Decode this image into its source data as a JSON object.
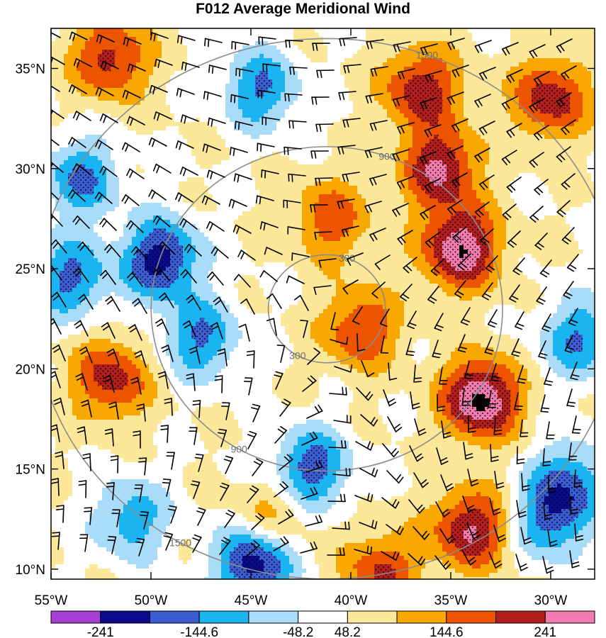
{
  "chart_data": {
    "type": "heatmap",
    "title": "F012 Average Meridional Wind",
    "x_ticks": [
      "55°W",
      "50°W",
      "45°W",
      "40°W",
      "35°W",
      "30°W"
    ],
    "x_tick_values": [
      -55,
      -50,
      -45,
      -40,
      -35,
      -30
    ],
    "y_ticks": [
      "35°N",
      "30°N",
      "25°N",
      "20°N",
      "15°N",
      "10°N"
    ],
    "y_tick_values": [
      35,
      30,
      25,
      20,
      15,
      10
    ],
    "xlim": [
      -55,
      -27.8
    ],
    "ylim": [
      9.5,
      37
    ],
    "center": {
      "lon": -41.2,
      "lat": 23.0
    },
    "range_rings": [
      300,
      900,
      1500
    ],
    "ring_label_text": [
      "300",
      "900",
      "1500"
    ],
    "colorbar": {
      "levels": [
        -241,
        -192.8,
        -144.6,
        -96.4,
        -48.2,
        0,
        48.2,
        96.4,
        144.6,
        192.8,
        241
      ],
      "labeled_levels": [
        "-241",
        "-144.6",
        "-48.2",
        "48.2",
        "144.6",
        "241"
      ],
      "colors": [
        "#a63fd6",
        "#0a0a8c",
        "#3c5cd2",
        "#1ab4f0",
        "#a8dcf8",
        "#ffffff",
        "#fde89a",
        "#f8a800",
        "#ec5400",
        "#b21e1e",
        "#f27aae"
      ]
    },
    "features": [
      {
        "kind": "positive",
        "lon": -33.5,
        "lat": 18.5,
        "value": 260
      },
      {
        "kind": "positive",
        "lon": -34.5,
        "lat": 26,
        "value": 240
      },
      {
        "kind": "positive",
        "lon": -35.5,
        "lat": 30,
        "value": 200
      },
      {
        "kind": "positive",
        "lon": -36.5,
        "lat": 34,
        "value": 180
      },
      {
        "kind": "positive",
        "lon": -34,
        "lat": 12,
        "value": 200
      },
      {
        "kind": "positive",
        "lon": -30,
        "lat": 33.5,
        "value": 180
      },
      {
        "kind": "positive",
        "lon": -52,
        "lat": 35.5,
        "value": 170
      },
      {
        "kind": "positive",
        "lon": -52,
        "lat": 19.5,
        "value": 170
      },
      {
        "kind": "positive",
        "lon": -39.5,
        "lat": 22,
        "value": 150
      },
      {
        "kind": "positive",
        "lon": -41,
        "lat": 27.5,
        "value": 130
      },
      {
        "kind": "positive",
        "lon": -38.5,
        "lat": 9.8,
        "value": 150
      },
      {
        "kind": "positive",
        "lon": -44,
        "lat": 12.5,
        "value": 100
      },
      {
        "kind": "negative",
        "lon": -49.5,
        "lat": 25.5,
        "value": -220
      },
      {
        "kind": "negative",
        "lon": -47.5,
        "lat": 21.5,
        "value": -150
      },
      {
        "kind": "negative",
        "lon": -42,
        "lat": 15,
        "value": -180
      },
      {
        "kind": "negative",
        "lon": -44.8,
        "lat": 10.3,
        "value": -240
      },
      {
        "kind": "negative",
        "lon": -44.5,
        "lat": 34,
        "value": -150
      },
      {
        "kind": "negative",
        "lon": -54,
        "lat": 24.5,
        "value": -160
      },
      {
        "kind": "negative",
        "lon": -53.5,
        "lat": 29.5,
        "value": -150
      },
      {
        "kind": "negative",
        "lon": -28.5,
        "lat": 21.5,
        "value": -150
      },
      {
        "kind": "negative",
        "lon": -30,
        "lat": 12.5,
        "value": -160
      },
      {
        "kind": "negative",
        "lon": -29,
        "lat": 14.5,
        "value": -130
      },
      {
        "kind": "negative",
        "lon": -51,
        "lat": 12.5,
        "value": -130
      }
    ]
  }
}
